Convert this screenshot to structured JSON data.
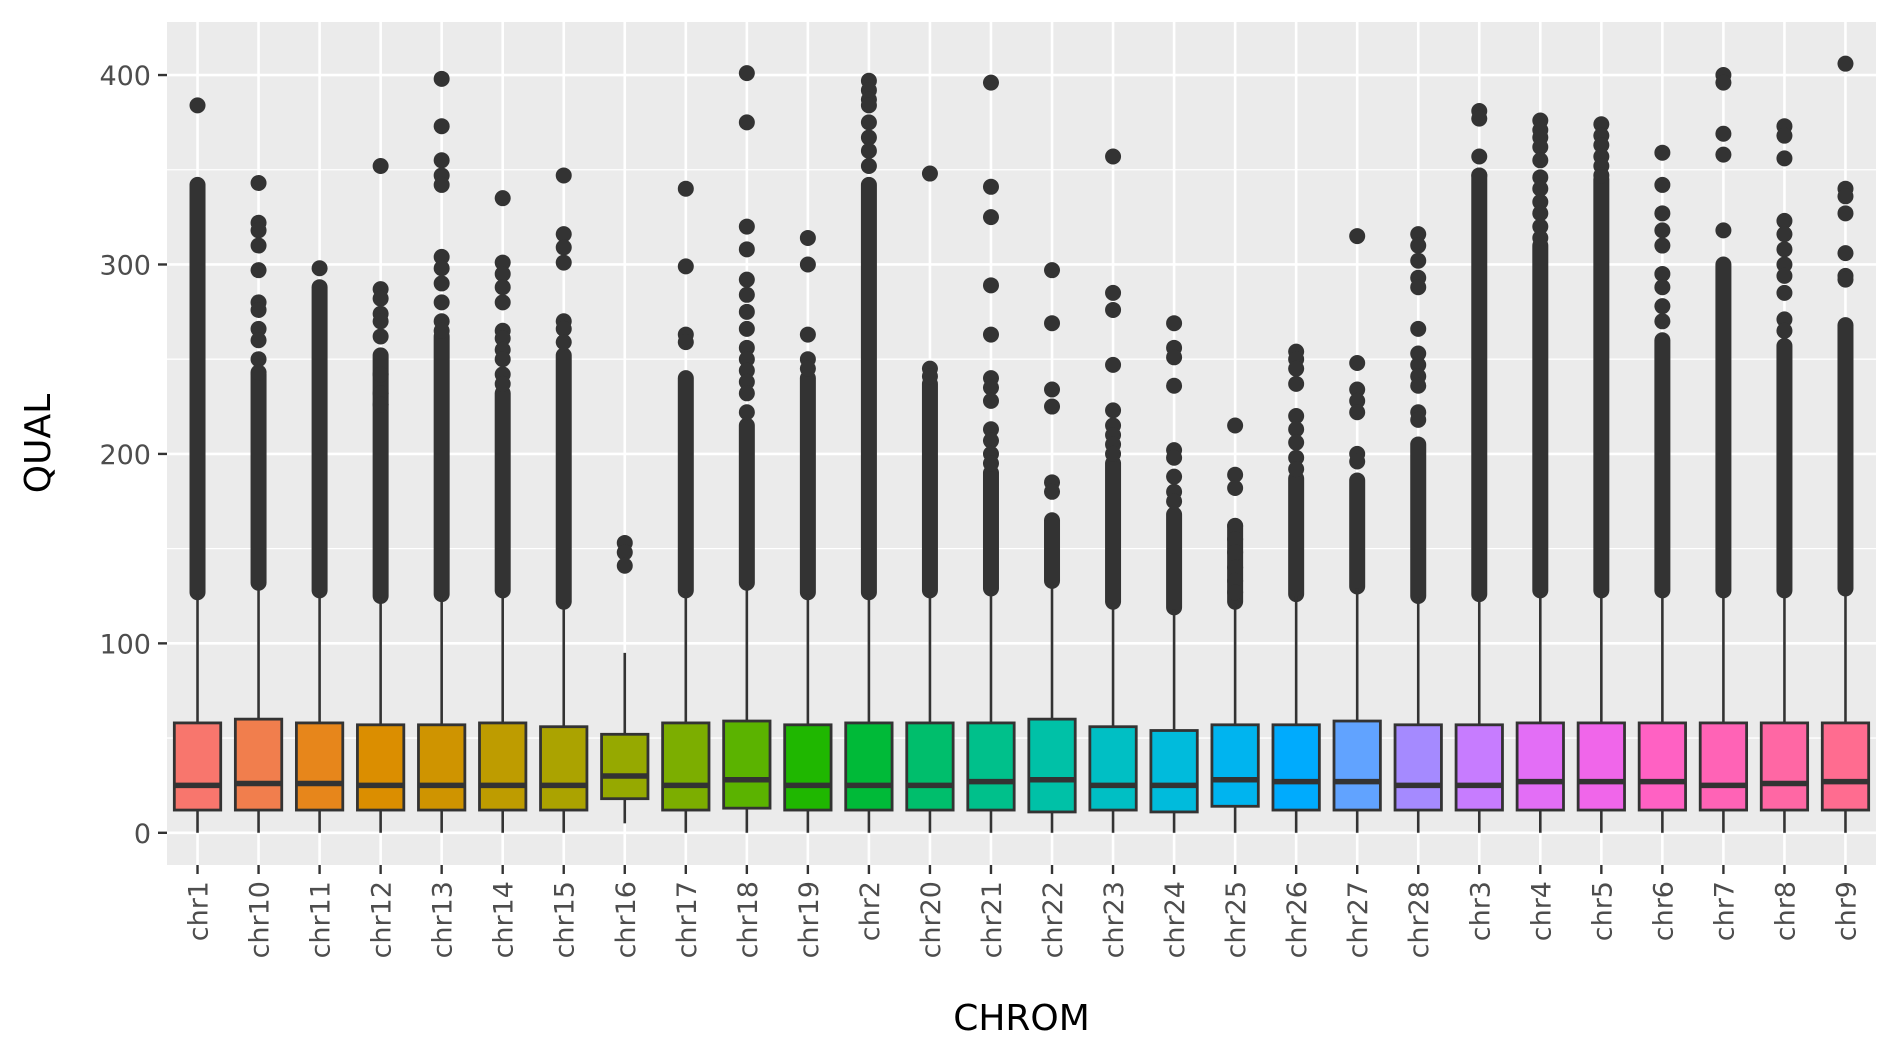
{
  "chart_data": {
    "type": "boxplot",
    "xlabel": "CHROM",
    "ylabel": "QUAL",
    "ylim": [
      -17,
      428
    ],
    "y_ticks": [
      0,
      100,
      200,
      300,
      400
    ],
    "grid": true,
    "legend": "none",
    "categories": [
      "chr1",
      "chr10",
      "chr11",
      "chr12",
      "chr13",
      "chr14",
      "chr15",
      "chr16",
      "chr17",
      "chr18",
      "chr19",
      "chr2",
      "chr20",
      "chr21",
      "chr22",
      "chr23",
      "chr24",
      "chr25",
      "chr26",
      "chr27",
      "chr28",
      "chr3",
      "chr4",
      "chr5",
      "chr6",
      "chr7",
      "chr8",
      "chr9"
    ],
    "colors": [
      "#F8766D",
      "#F17E4D",
      "#E7861B",
      "#DB8E00",
      "#CF9400",
      "#BE9C00",
      "#ABA300",
      "#96A900",
      "#7CAE00",
      "#5BB300",
      "#1FB700",
      "#00BA38",
      "#00BE6C",
      "#00C08B",
      "#00C1A7",
      "#00BFC4",
      "#00BBDC",
      "#00B4EF",
      "#00ABFD",
      "#61A3FF",
      "#A58AFF",
      "#C77CFF",
      "#E36EF6",
      "#F066EA",
      "#FF61C3",
      "#FF63B6",
      "#FF67A4",
      "#FF6C90"
    ],
    "boxes": [
      {
        "q1": 12,
        "median": 25,
        "q3": 58,
        "whisker_low": 0,
        "whisker_high": 126
      },
      {
        "q1": 12,
        "median": 26,
        "q3": 60,
        "whisker_low": 0,
        "whisker_high": 131
      },
      {
        "q1": 12,
        "median": 26,
        "q3": 58,
        "whisker_low": 0,
        "whisker_high": 127
      },
      {
        "q1": 12,
        "median": 25,
        "q3": 57,
        "whisker_low": 0,
        "whisker_high": 124
      },
      {
        "q1": 12,
        "median": 25,
        "q3": 57,
        "whisker_low": 0,
        "whisker_high": 125
      },
      {
        "q1": 12,
        "median": 25,
        "q3": 58,
        "whisker_low": 0,
        "whisker_high": 127
      },
      {
        "q1": 12,
        "median": 25,
        "q3": 56,
        "whisker_low": 0,
        "whisker_high": 121
      },
      {
        "q1": 18,
        "median": 30,
        "q3": 52,
        "whisker_low": 5,
        "whisker_high": 95
      },
      {
        "q1": 12,
        "median": 25,
        "q3": 58,
        "whisker_low": 0,
        "whisker_high": 127
      },
      {
        "q1": 13,
        "median": 28,
        "q3": 59,
        "whisker_low": 0,
        "whisker_high": 131
      },
      {
        "q1": 12,
        "median": 25,
        "q3": 57,
        "whisker_low": 0,
        "whisker_high": 126
      },
      {
        "q1": 12,
        "median": 25,
        "q3": 58,
        "whisker_low": 0,
        "whisker_high": 126
      },
      {
        "q1": 12,
        "median": 25,
        "q3": 58,
        "whisker_low": 0,
        "whisker_high": 127
      },
      {
        "q1": 12,
        "median": 27,
        "q3": 58,
        "whisker_low": 0,
        "whisker_high": 128
      },
      {
        "q1": 11,
        "median": 28,
        "q3": 60,
        "whisker_low": 0,
        "whisker_high": 132
      },
      {
        "q1": 12,
        "median": 25,
        "q3": 56,
        "whisker_low": 0,
        "whisker_high": 121
      },
      {
        "q1": 11,
        "median": 25,
        "q3": 54,
        "whisker_low": 0,
        "whisker_high": 118
      },
      {
        "q1": 14,
        "median": 28,
        "q3": 57,
        "whisker_low": 0,
        "whisker_high": 121
      },
      {
        "q1": 12,
        "median": 27,
        "q3": 57,
        "whisker_low": 0,
        "whisker_high": 125
      },
      {
        "q1": 12,
        "median": 27,
        "q3": 59,
        "whisker_low": 0,
        "whisker_high": 129
      },
      {
        "q1": 12,
        "median": 25,
        "q3": 57,
        "whisker_low": 0,
        "whisker_high": 124
      },
      {
        "q1": 12,
        "median": 25,
        "q3": 57,
        "whisker_low": 0,
        "whisker_high": 125
      },
      {
        "q1": 12,
        "median": 27,
        "q3": 58,
        "whisker_low": 0,
        "whisker_high": 127
      },
      {
        "q1": 12,
        "median": 27,
        "q3": 58,
        "whisker_low": 0,
        "whisker_high": 127
      },
      {
        "q1": 12,
        "median": 27,
        "q3": 58,
        "whisker_low": 0,
        "whisker_high": 127
      },
      {
        "q1": 12,
        "median": 25,
        "q3": 58,
        "whisker_low": 0,
        "whisker_high": 127
      },
      {
        "q1": 12,
        "median": 26,
        "q3": 58,
        "whisker_low": 0,
        "whisker_high": 127
      },
      {
        "q1": 12,
        "median": 27,
        "q3": 58,
        "whisker_low": 0,
        "whisker_high": 128
      }
    ],
    "outliers": [
      {
        "dense_top": 342,
        "max": 384,
        "extra": [
          384
        ]
      },
      {
        "dense_top": 242,
        "max": 343,
        "extra": [
          343,
          322,
          318,
          310,
          297,
          280,
          276,
          266,
          260,
          250,
          243
        ]
      },
      {
        "dense_top": 288,
        "max": 298,
        "extra": [
          298
        ]
      },
      {
        "dense_top": 252,
        "max": 352,
        "extra": [
          352,
          287,
          282,
          274,
          270,
          262,
          242,
          232,
          226
        ]
      },
      {
        "dense_top": 262,
        "max": 398,
        "extra": [
          398,
          373,
          355,
          347,
          342,
          304,
          298,
          290,
          280,
          270,
          265
        ]
      },
      {
        "dense_top": 232,
        "max": 335,
        "extra": [
          335,
          301,
          295,
          288,
          280,
          265,
          261,
          255,
          250,
          242,
          237
        ]
      },
      {
        "dense_top": 252,
        "max": 347,
        "extra": [
          347,
          316,
          309,
          301,
          270,
          266,
          259
        ]
      },
      {
        "dense_top": null,
        "max": 153,
        "extra": [
          153,
          148,
          141
        ]
      },
      {
        "dense_top": 240,
        "max": 340,
        "extra": [
          340,
          299,
          263,
          259
        ]
      },
      {
        "dense_top": 215,
        "max": 401,
        "extra": [
          401,
          375,
          320,
          308,
          292,
          284,
          275,
          266,
          256,
          250,
          244,
          238,
          232,
          222
        ]
      },
      {
        "dense_top": 240,
        "max": 314,
        "extra": [
          314,
          300,
          263,
          250,
          245
        ]
      },
      {
        "dense_top": 342,
        "max": 397,
        "extra": [
          397,
          392,
          387,
          384,
          375,
          367,
          360,
          352
        ]
      },
      {
        "dense_top": 237,
        "max": 348,
        "extra": [
          348,
          245,
          241
        ]
      },
      {
        "dense_top": 190,
        "max": 396,
        "extra": [
          396,
          341,
          325,
          289,
          263,
          240,
          235,
          228,
          213,
          207,
          200,
          195
        ]
      },
      {
        "dense_top": 165,
        "max": 297,
        "extra": [
          297,
          269,
          234,
          225,
          185,
          180
        ]
      },
      {
        "dense_top": 195,
        "max": 357,
        "extra": [
          357,
          285,
          276,
          247,
          223,
          215,
          210,
          205,
          200
        ]
      },
      {
        "dense_top": 168,
        "max": 269,
        "extra": [
          269,
          256,
          251,
          236,
          202,
          198,
          188,
          180,
          175
        ]
      },
      {
        "dense_top": 162,
        "max": 215,
        "extra": [
          215,
          189,
          182,
          162,
          155,
          148,
          140,
          133,
          127
        ]
      },
      {
        "dense_top": 187,
        "max": 254,
        "extra": [
          254,
          250,
          245,
          237,
          220,
          213,
          206,
          198,
          192
        ]
      },
      {
        "dense_top": 186,
        "max": 315,
        "extra": [
          315,
          248,
          234,
          228,
          222,
          200,
          196
        ]
      },
      {
        "dense_top": 205,
        "max": 316,
        "extra": [
          316,
          310,
          302,
          293,
          288,
          266,
          253,
          247,
          241,
          236,
          222,
          218
        ]
      },
      {
        "dense_top": 347,
        "max": 381,
        "extra": [
          381,
          377,
          357,
          347
        ]
      },
      {
        "dense_top": 310,
        "max": 376,
        "extra": [
          376,
          371,
          367,
          362,
          355,
          346,
          340,
          333,
          327,
          320,
          314
        ]
      },
      {
        "dense_top": 345,
        "max": 374,
        "extra": [
          374,
          368,
          363,
          357,
          352,
          347
        ]
      },
      {
        "dense_top": 260,
        "max": 359,
        "extra": [
          359,
          342,
          327,
          318,
          310,
          295,
          288,
          278,
          270
        ]
      },
      {
        "dense_top": 300,
        "max": 400,
        "extra": [
          400,
          396,
          369,
          358,
          318
        ]
      },
      {
        "dense_top": 257,
        "max": 373,
        "extra": [
          373,
          368,
          356,
          323,
          316,
          308,
          300,
          294,
          285,
          271,
          265
        ]
      },
      {
        "dense_top": 268,
        "max": 406,
        "extra": [
          406,
          340,
          336,
          327,
          306,
          294,
          292
        ]
      }
    ]
  }
}
